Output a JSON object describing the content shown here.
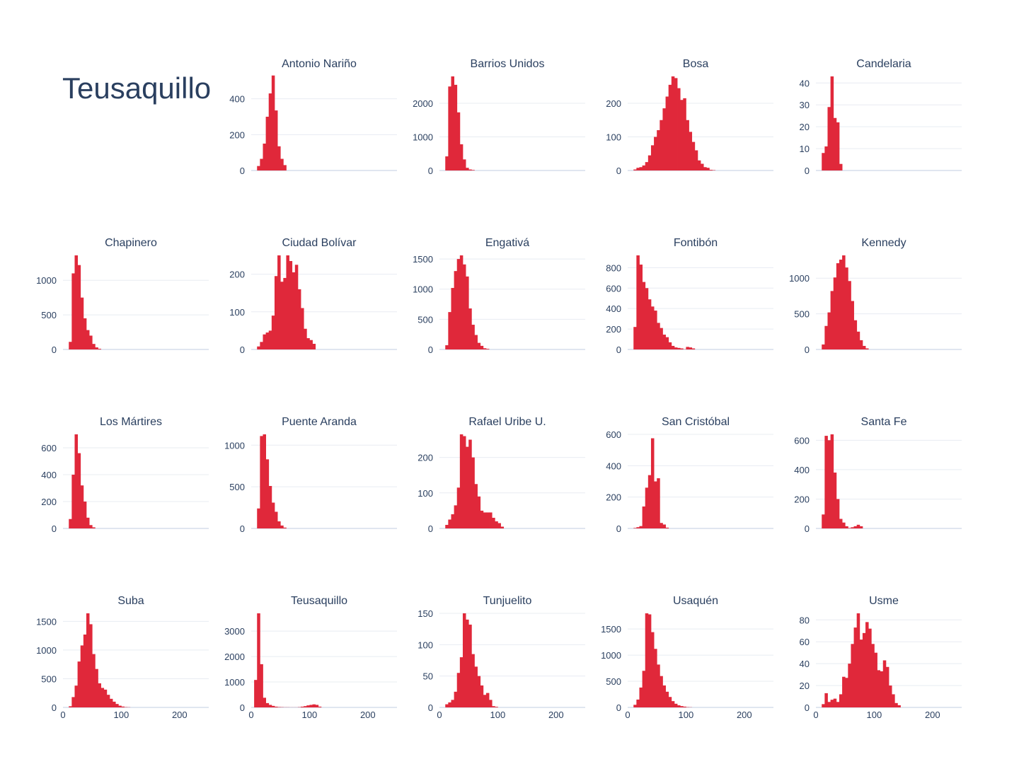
{
  "page_title": "Teusaquillo",
  "colors": {
    "bar": "#e0283a",
    "grid": "#e8ecf2",
    "axis": "#e0e6f0",
    "text": "#2a3f5f"
  },
  "chart_data": [
    {
      "type": "bar",
      "title": "Antonio Nariño",
      "x_start": 10,
      "bin_width": 5,
      "values": [
        25,
        65,
        150,
        300,
        430,
        530,
        335,
        135,
        65,
        30
      ],
      "yticks": [
        0,
        200,
        400
      ],
      "ylim": [
        0,
        525
      ],
      "xticks": [],
      "xlim": [
        0,
        250
      ]
    },
    {
      "type": "bar",
      "title": "Barrios Unidos",
      "x_start": 10,
      "bin_width": 5,
      "values": [
        420,
        2500,
        2800,
        2550,
        1730,
        780,
        330,
        80,
        30,
        15
      ],
      "yticks": [
        0,
        1000,
        2000
      ],
      "ylim": [
        0,
        2800
      ],
      "xticks": [],
      "xlim": [
        0,
        250
      ]
    },
    {
      "type": "bar",
      "title": "Bosa",
      "x_start": 10,
      "bin_width": 5,
      "values": [
        3,
        8,
        10,
        15,
        25,
        45,
        75,
        100,
        120,
        150,
        185,
        220,
        255,
        280,
        275,
        245,
        210,
        215,
        150,
        115,
        85,
        60,
        30,
        20,
        10,
        8,
        2,
        1
      ],
      "yticks": [
        0,
        100,
        200
      ],
      "ylim": [
        0,
        280
      ],
      "xticks": [],
      "xlim": [
        0,
        250
      ]
    },
    {
      "type": "bar",
      "title": "Candelaria",
      "x_start": 10,
      "bin_width": 5,
      "values": [
        8,
        11,
        29,
        43,
        24,
        22,
        3
      ],
      "yticks": [
        0,
        10,
        20,
        30,
        40
      ],
      "ylim": [
        0,
        43
      ],
      "xticks": [],
      "xlim": [
        0,
        250
      ]
    },
    {
      "type": "bar",
      "title": "Chapinero",
      "x_start": 10,
      "bin_width": 5,
      "values": [
        110,
        1100,
        1360,
        1220,
        750,
        450,
        280,
        200,
        80,
        30,
        10
      ],
      "yticks": [
        0,
        500,
        1000
      ],
      "ylim": [
        0,
        1360
      ],
      "xticks": [],
      "xlim": [
        0,
        250
      ]
    },
    {
      "type": "bar",
      "title": "Ciudad Bolívar",
      "x_start": 10,
      "bin_width": 5,
      "values": [
        8,
        20,
        40,
        45,
        50,
        90,
        195,
        250,
        180,
        190,
        250,
        235,
        205,
        225,
        160,
        110,
        55,
        30,
        25,
        15
      ],
      "yticks": [
        0,
        100,
        200
      ],
      "ylim": [
        0,
        250
      ],
      "xticks": [],
      "xlim": [
        0,
        250
      ]
    },
    {
      "type": "bar",
      "title": "Engativá",
      "x_start": 10,
      "bin_width": 5,
      "values": [
        70,
        620,
        1020,
        1300,
        1500,
        1560,
        1410,
        1210,
        680,
        410,
        240,
        110,
        60,
        20,
        10
      ],
      "yticks": [
        0,
        500,
        1000,
        1500
      ],
      "ylim": [
        0,
        1560
      ],
      "xticks": [],
      "xlim": [
        0,
        250
      ]
    },
    {
      "type": "bar",
      "title": "Fontibón",
      "x_start": 10,
      "bin_width": 5,
      "values": [
        220,
        920,
        830,
        660,
        600,
        490,
        420,
        380,
        260,
        210,
        145,
        120,
        70,
        35,
        20,
        15,
        10,
        2,
        25,
        20,
        10
      ],
      "yticks": [
        0,
        200,
        400,
        600,
        800
      ],
      "ylim": [
        0,
        920
      ],
      "xticks": [],
      "xlim": [
        0,
        250
      ]
    },
    {
      "type": "bar",
      "title": "Kennedy",
      "x_start": 10,
      "bin_width": 5,
      "values": [
        70,
        330,
        520,
        820,
        1010,
        1210,
        1260,
        1320,
        1150,
        960,
        680,
        410,
        250,
        130,
        50,
        15
      ],
      "yticks": [
        0,
        500,
        1000
      ],
      "ylim": [
        0,
        1320
      ],
      "xticks": [],
      "xlim": [
        0,
        250
      ]
    },
    {
      "type": "bar",
      "title": "Los Mártires",
      "x_start": 10,
      "bin_width": 5,
      "values": [
        70,
        400,
        700,
        560,
        320,
        200,
        80,
        25,
        8
      ],
      "yticks": [
        0,
        200,
        400,
        600
      ],
      "ylim": [
        0,
        700
      ],
      "xticks": [],
      "xlim": [
        0,
        250
      ]
    },
    {
      "type": "bar",
      "title": "Puente Aranda",
      "x_start": 10,
      "bin_width": 5,
      "values": [
        240,
        1110,
        1130,
        830,
        510,
        310,
        200,
        85,
        35,
        10
      ],
      "yticks": [
        0,
        500,
        1000
      ],
      "ylim": [
        0,
        1130
      ],
      "xticks": [],
      "xlim": [
        0,
        250
      ]
    },
    {
      "type": "bar",
      "title": "Rafael Uribe U.",
      "x_start": 10,
      "bin_width": 5,
      "values": [
        10,
        25,
        40,
        65,
        115,
        265,
        260,
        230,
        250,
        200,
        125,
        90,
        50,
        45,
        45,
        45,
        30,
        20,
        15,
        5
      ],
      "yticks": [
        0,
        100,
        200
      ],
      "ylim": [
        0,
        265
      ],
      "xticks": [],
      "xlim": [
        0,
        250
      ]
    },
    {
      "type": "bar",
      "title": "San Cristóbal",
      "x_start": 10,
      "bin_width": 5,
      "values": [
        3,
        8,
        15,
        140,
        260,
        340,
        575,
        300,
        320,
        35,
        25,
        5
      ],
      "yticks": [
        0,
        200,
        400,
        600
      ],
      "ylim": [
        0,
        600
      ],
      "xticks": [],
      "xlim": [
        0,
        250
      ]
    },
    {
      "type": "bar",
      "title": "Santa Fe",
      "x_start": 10,
      "bin_width": 5,
      "values": [
        95,
        630,
        600,
        640,
        380,
        200,
        65,
        40,
        15,
        3,
        8,
        15,
        25,
        15
      ],
      "yticks": [
        0,
        200,
        400,
        600
      ],
      "ylim": [
        0,
        640
      ],
      "xticks": [],
      "xlim": [
        0,
        250
      ]
    },
    {
      "type": "bar",
      "title": "Suba",
      "x_start": 10,
      "bin_width": 5,
      "values": [
        20,
        180,
        380,
        800,
        1080,
        1270,
        1640,
        1450,
        930,
        670,
        420,
        340,
        310,
        220,
        150,
        100,
        60,
        30,
        15,
        5,
        3
      ],
      "yticks": [
        0,
        500,
        1000,
        1500
      ],
      "ylim": [
        0,
        1640
      ],
      "xticks": [
        0,
        100,
        200
      ],
      "xlim": [
        0,
        250
      ]
    },
    {
      "type": "bar",
      "title": "Teusaquillo",
      "x_start": 0,
      "bin_width": 5,
      "values": [
        0,
        1080,
        3700,
        1700,
        380,
        170,
        100,
        60,
        30,
        15,
        10,
        5,
        5,
        3,
        3,
        3,
        10,
        30,
        50,
        80,
        100,
        120,
        100,
        30
      ],
      "yticks": [
        0,
        1000,
        2000,
        3000
      ],
      "ylim": [
        0,
        3700
      ],
      "xticks": [
        0,
        100,
        200
      ],
      "xlim": [
        0,
        250
      ]
    },
    {
      "type": "bar",
      "title": "Tunjuelito",
      "x_start": 10,
      "bin_width": 5,
      "values": [
        5,
        8,
        12,
        25,
        55,
        80,
        150,
        140,
        132,
        85,
        65,
        50,
        35,
        20,
        23,
        12,
        2,
        1
      ],
      "yticks": [
        0,
        50,
        100,
        150
      ],
      "ylim": [
        0,
        150
      ],
      "xticks": [
        0,
        100,
        200
      ],
      "xlim": [
        0,
        250
      ]
    },
    {
      "type": "bar",
      "title": "Usaquén",
      "x_start": 10,
      "bin_width": 5,
      "values": [
        50,
        150,
        380,
        700,
        1800,
        1780,
        1440,
        1120,
        820,
        600,
        420,
        300,
        200,
        120,
        70,
        40,
        25,
        15,
        5,
        3
      ],
      "yticks": [
        0,
        500,
        1000,
        1500
      ],
      "ylim": [
        0,
        1800
      ],
      "xticks": [
        0,
        100,
        200
      ],
      "xlim": [
        0,
        250
      ]
    },
    {
      "type": "bar",
      "title": "Usme",
      "x_start": 10,
      "bin_width": 5,
      "values": [
        3,
        13,
        5,
        7,
        8,
        5,
        12,
        28,
        27,
        40,
        58,
        73,
        86,
        62,
        68,
        78,
        72,
        58,
        50,
        34,
        33,
        43,
        37,
        20,
        12,
        4,
        2
      ],
      "yticks": [
        0,
        20,
        40,
        60,
        80
      ],
      "ylim": [
        0,
        86
      ],
      "xticks": [
        0,
        100,
        200
      ],
      "xlim": [
        0,
        250
      ]
    }
  ]
}
